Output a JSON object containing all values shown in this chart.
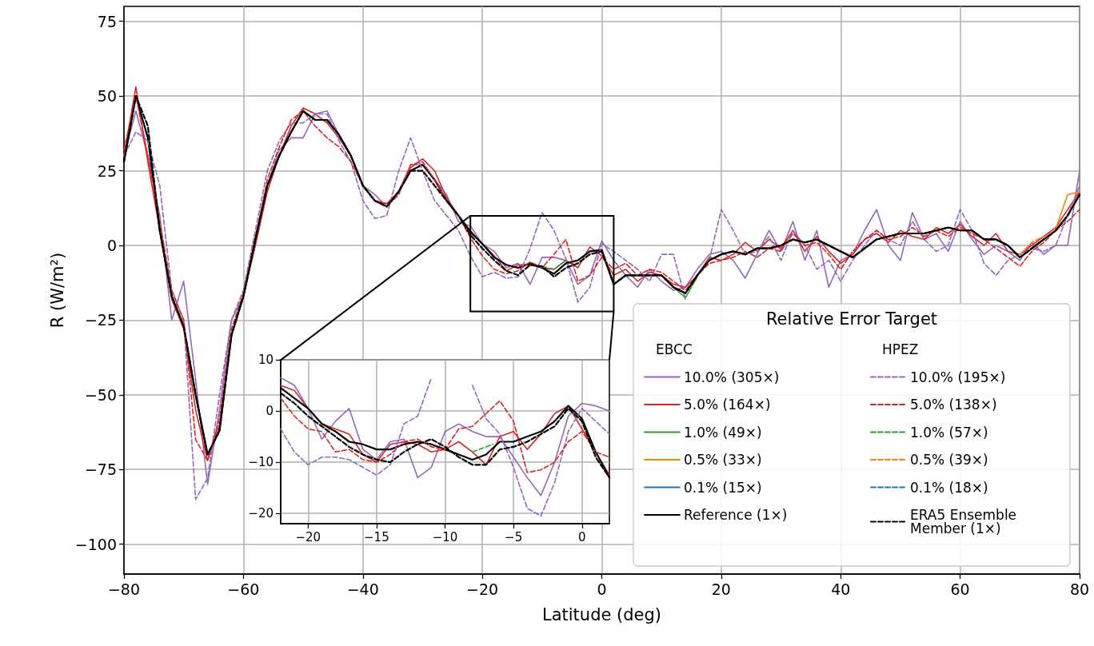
{
  "chart_data": [
    {
      "type": "line",
      "xlabel": "Latitude (deg)",
      "ylabel": "R (W/m²)",
      "legend_title": "Relative Error Target",
      "annotations": [
        "EBCC",
        "HPEZ"
      ],
      "x": [
        -80,
        -78,
        -76,
        -74,
        -72,
        -70,
        -68,
        -66,
        -64,
        -62,
        -60,
        -58,
        -56,
        -54,
        -52,
        -50,
        -48,
        -46,
        -44,
        -42,
        -40,
        -38,
        -36,
        -34,
        -32,
        -30,
        -28,
        -26,
        -24,
        -22,
        -20,
        -18,
        -16,
        -14,
        -12,
        -10,
        -8,
        -6,
        -4,
        -2,
        0,
        2,
        4,
        6,
        8,
        10,
        12,
        14,
        16,
        18,
        20,
        22,
        24,
        26,
        28,
        30,
        32,
        34,
        36,
        38,
        40,
        42,
        44,
        46,
        48,
        50,
        52,
        54,
        56,
        58,
        60,
        62,
        64,
        66,
        68,
        70,
        72,
        74,
        76,
        78,
        80
      ],
      "series": [
        {
          "name": "10.0% (305×)",
          "color": "#9467bd",
          "line_style": "solid",
          "values": [
            30,
            45,
            30,
            10,
            -25,
            -12,
            -45,
            -80,
            -55,
            -25,
            -17,
            3,
            20,
            32,
            36,
            36,
            44,
            45,
            37,
            30,
            20,
            17,
            13,
            18,
            27,
            27,
            22,
            17,
            8,
            6.5,
            0.5,
            -2,
            -7.5,
            -6,
            -13,
            -4,
            -4,
            -5,
            -13,
            -10,
            1.5,
            -5,
            -10,
            -14,
            -8,
            -12,
            -15,
            -14,
            -8,
            -3,
            -2,
            -5,
            -11,
            -3,
            5,
            -2,
            8,
            -5,
            5,
            -14,
            -5,
            -3,
            5,
            12,
            0,
            -5,
            11,
            2,
            4,
            -2,
            8,
            2,
            -3,
            0,
            -2,
            -5,
            1,
            -3,
            0,
            0,
            25
          ]
        },
        {
          "name": "5.0% (164×)",
          "color": "#d62728",
          "line_style": "solid",
          "values": [
            30,
            53,
            28,
            5,
            -18,
            -28,
            -55,
            -72,
            -60,
            -30,
            -17,
            0,
            18,
            30,
            40,
            46,
            44,
            41,
            36,
            30,
            20,
            15,
            14,
            18,
            26,
            29,
            25,
            16,
            10,
            5,
            0.5,
            -3.5,
            -8.5,
            -6.5,
            -6.5,
            -7.5,
            -8,
            -5,
            -7.5,
            -0.5,
            -3.5,
            -10,
            -8,
            -12,
            -9,
            -10,
            -13,
            -14,
            -10,
            -4,
            -5,
            -3,
            1,
            -2,
            2,
            -1,
            5,
            -2,
            3,
            -2,
            -6,
            -3,
            2,
            4,
            1,
            5,
            3,
            2,
            6,
            4,
            7,
            3,
            0,
            4,
            -2,
            -3,
            0,
            3,
            6,
            12,
            18
          ]
        },
        {
          "name": "1.0% (49×)",
          "color": "#2ca02c",
          "line_style": "solid",
          "x": [
            12,
            14,
            16
          ],
          "values": [
            -14,
            -17.5,
            -10.5
          ]
        },
        {
          "name": "0.5% (33×)",
          "color": "#ff7f0e",
          "line_style": "solid",
          "x": [
            76,
            78,
            80
          ],
          "values": [
            5.5,
            17,
            18
          ]
        },
        {
          "name": "0.1% (15×)",
          "color": "#1f77b4",
          "line_style": "solid",
          "values": [
            null,
            null,
            null,
            null,
            null,
            null,
            null,
            null,
            null,
            null,
            null,
            null,
            null,
            null,
            null,
            null,
            null,
            null,
            null,
            null,
            null,
            null,
            null,
            null,
            null,
            null,
            null,
            null,
            null,
            null,
            null,
            null,
            null,
            null,
            null,
            null,
            null,
            null,
            null,
            null,
            null,
            null,
            null,
            null,
            null,
            null,
            null,
            null,
            null,
            null,
            null,
            null,
            null,
            null,
            null,
            null,
            null,
            null,
            null,
            null,
            null,
            null,
            null,
            null,
            null,
            null,
            null,
            null,
            null,
            null,
            null,
            null,
            null,
            null,
            null,
            null,
            null,
            null,
            null,
            null,
            null
          ]
        },
        {
          "name": "Reference (1×)",
          "color": "#000000",
          "line_style": "solid",
          "values": [
            28,
            50,
            36,
            5,
            -17,
            -27,
            -50,
            -70,
            -62,
            -30,
            -17,
            2,
            20,
            30,
            38,
            45,
            42,
            42,
            37,
            30,
            20,
            15,
            13,
            18,
            25,
            27,
            22,
            15,
            10,
            4.5,
            0.5,
            -4,
            -6.5,
            -7.5,
            -6,
            -7.5,
            -9.5,
            -6,
            -5,
            -2,
            -1.5,
            -13,
            -10,
            -10,
            -10,
            -10,
            -14,
            -16,
            -10,
            -5,
            -3,
            -2,
            -3,
            -1,
            -1,
            0,
            2,
            1,
            2,
            0,
            -2,
            -4,
            -1,
            2,
            3,
            4,
            4,
            4,
            5,
            6,
            5,
            5,
            2,
            2,
            0,
            -4,
            -1,
            2,
            5,
            10,
            17
          ]
        },
        {
          "name": "10.0% (195×)",
          "color": "#9467bd",
          "line_style": "dashed",
          "values": [
            30,
            38,
            35,
            20,
            -15,
            -25,
            -85,
            -78,
            -50,
            -25,
            -15,
            5,
            25,
            35,
            41,
            41,
            44,
            44,
            35,
            28,
            15,
            9,
            10,
            25,
            36,
            25,
            15,
            10,
            5,
            -3.5,
            -10.5,
            -9,
            -11,
            -10.5,
            -1,
            11,
            5,
            -4.5,
            -19,
            -14,
            0.5,
            -2,
            -5,
            -8,
            -12,
            -3,
            -3,
            -18,
            null,
            -5,
            12,
            5,
            -3,
            -2,
            3,
            -5,
            5,
            0,
            -8,
            -5,
            -12,
            -5,
            0,
            5,
            2,
            0,
            8,
            2,
            -2,
            0,
            12,
            5,
            -6,
            -10,
            -5,
            -3,
            -1,
            -2,
            0,
            10,
            20
          ]
        },
        {
          "name": "5.0% (138×)",
          "color": "#d62728",
          "line_style": "dashed",
          "values": [
            32,
            50,
            30,
            8,
            -15,
            -25,
            -65,
            -72,
            -58,
            -28,
            -16,
            2,
            22,
            33,
            42,
            45,
            40,
            36,
            33,
            28,
            20,
            15,
            13,
            17,
            27,
            28,
            22,
            15,
            10,
            2.5,
            -3.5,
            -8,
            -9.5,
            -8.5,
            -5.5,
            -7.5,
            -3,
            2,
            -12,
            -10,
            -4,
            -8,
            -6,
            -10,
            -8,
            -9,
            -12,
            -15,
            -10,
            -6,
            -5,
            -4,
            -2,
            -4,
            -1,
            -2,
            4,
            0,
            1,
            -3,
            -8,
            -2,
            2,
            5,
            2,
            3,
            6,
            3,
            5,
            3,
            6,
            4,
            2,
            -1,
            -4,
            -7,
            -2,
            1,
            5,
            8,
            12
          ]
        },
        {
          "name": "1.0% (57×)",
          "color": "#2ca02c",
          "line_style": "dashed",
          "x": [
            -10,
            -8,
            -6
          ],
          "values": [
            -7,
            -8,
            -5
          ]
        },
        {
          "name": "0.5% (39×)",
          "color": "#ff7f0e",
          "line_style": "dashed",
          "x": [
            70,
            72,
            74
          ],
          "values": [
            -3,
            1,
            3
          ]
        },
        {
          "name": "0.1% (18×)",
          "color": "#1f77b4",
          "line_style": "dashed",
          "values": [
            null,
            null,
            null,
            null,
            null,
            null,
            null,
            null,
            null,
            null,
            null,
            null,
            null,
            null,
            null,
            null,
            null,
            null,
            null,
            null,
            null,
            null,
            null,
            null,
            null,
            null,
            null,
            null,
            null,
            null,
            null,
            null,
            null,
            null,
            null,
            null,
            null,
            null,
            null,
            null,
            null,
            null,
            null,
            null,
            null,
            null,
            null,
            null,
            null,
            null,
            null,
            null,
            null,
            null,
            null,
            null,
            null,
            null,
            null,
            null,
            null,
            null,
            null,
            null,
            null,
            null,
            null,
            null,
            null,
            null,
            null,
            null,
            null,
            null,
            null,
            null,
            null,
            null,
            null,
            null,
            null
          ]
        },
        {
          "name": "ERA5 Ensemble Member (1×)",
          "color": "#000000",
          "line_style": "dashed",
          "values": [
            28,
            50,
            40,
            5,
            -17,
            -27,
            -50,
            -70,
            -62,
            -30,
            -17,
            2,
            20,
            30,
            38,
            45,
            42,
            42,
            37,
            30,
            20,
            15,
            13,
            18,
            25,
            25,
            20,
            15,
            10,
            3.5,
            -1,
            -5,
            -8.5,
            -10,
            -6.5,
            -7,
            -10.5,
            -7.5,
            -6,
            -3,
            -2,
            -13,
            -10,
            -10,
            -10,
            -10,
            -14,
            -16,
            -10,
            -5,
            -3,
            -2,
            -3,
            -1,
            -1,
            0,
            2,
            1,
            2,
            0,
            -2,
            -4,
            -1,
            2,
            3,
            4,
            4,
            4,
            5,
            6,
            5,
            5,
            2,
            2,
            0,
            -4,
            -1,
            2,
            5,
            10,
            17
          ]
        }
      ],
      "xlim": [
        -80,
        80
      ],
      "xticks": [
        -80,
        -60,
        -40,
        -20,
        0,
        20,
        40,
        60,
        80
      ],
      "ylim": [
        -110,
        80
      ],
      "yticks": [
        -100,
        -75,
        -50,
        -25,
        0,
        25,
        50,
        75
      ],
      "grid": true,
      "legend": "bottom right"
    },
    {
      "type": "line",
      "x": [
        -22,
        -21,
        -20,
        -19,
        -18,
        -17,
        -16,
        -15,
        -14,
        -13,
        -12,
        -11,
        -10,
        -9,
        -8,
        -7,
        -6,
        -5,
        -4,
        -3,
        -2,
        -1,
        0,
        1,
        2
      ],
      "series": [
        {
          "color": "#9467bd",
          "line_style": "solid",
          "values": [
            6.5,
            5,
            0.5,
            -5.5,
            -2,
            0.5,
            -7.5,
            -9.5,
            -6,
            -5.5,
            -13,
            -11,
            -4,
            -2.5,
            -4,
            -5,
            -5,
            -9,
            -13,
            -16.5,
            -10,
            -1,
            1.5,
            1,
            0
          ]
        },
        {
          "color": "#d62728",
          "line_style": "solid",
          "values": [
            5,
            4,
            0.5,
            -2.5,
            -3.5,
            -4.5,
            -8.5,
            -10,
            -6.5,
            -6,
            -6.5,
            -8,
            -7.5,
            -6,
            -8,
            -10.5,
            -5,
            -4,
            -7.5,
            -4.5,
            -0.5,
            1,
            -3.5,
            -8,
            -12.5
          ]
        },
        {
          "color": "#000000",
          "line_style": "solid",
          "values": [
            4.5,
            2.5,
            0.5,
            -2.5,
            -4,
            -6,
            -6.5,
            -7.5,
            -7.5,
            -6.5,
            -6,
            -6.5,
            -7.5,
            -8.5,
            -9.5,
            -8.5,
            -6,
            -6,
            -5,
            -4,
            -2,
            1,
            -1.5,
            -8,
            -13
          ]
        },
        {
          "color": "#9467bd",
          "line_style": "dashed",
          "values": [
            -3.5,
            -8,
            -10.5,
            -9,
            -9,
            -9.5,
            -11,
            -12.5,
            -10.5,
            -2.5,
            -1,
            6.5,
            null,
            null,
            5,
            -1.5,
            -4.5,
            -11,
            -19,
            -20.5,
            -14,
            -4,
            0.5,
            -2,
            -4.5
          ]
        },
        {
          "color": "#d62728",
          "line_style": "dashed",
          "values": [
            2.5,
            -1,
            -3.5,
            -4,
            -8,
            -7.5,
            -9.5,
            -10,
            -8.5,
            -6,
            -5.5,
            -7,
            -7.5,
            -3.5,
            -3,
            -0.5,
            2,
            -2,
            -12,
            -11.5,
            -10,
            -6,
            -4,
            -8,
            -9
          ]
        },
        {
          "color": "#2ca02c",
          "line_style": "dashed",
          "x": [
            -8,
            -7.5,
            -7,
            -6.5
          ],
          "values": [
            -8,
            -7.5,
            -7,
            -6.5
          ]
        },
        {
          "color": "#000000",
          "line_style": "dashed",
          "values": [
            3.5,
            1.5,
            -1,
            -3,
            -5,
            -7,
            -8.5,
            -9.5,
            -10,
            -8,
            -6.5,
            -5.5,
            -7,
            -9,
            -10.5,
            -10.5,
            -7.5,
            -7,
            -6,
            -4.5,
            -3,
            0.5,
            -2,
            -9,
            -13
          ]
        }
      ],
      "xlim": [
        -22,
        2
      ],
      "xticks": [
        -20,
        -15,
        -10,
        -5,
        0
      ],
      "ylim": [
        -22,
        10
      ],
      "yticks": [
        -20,
        -10,
        0,
        10
      ],
      "grid": true
    }
  ]
}
